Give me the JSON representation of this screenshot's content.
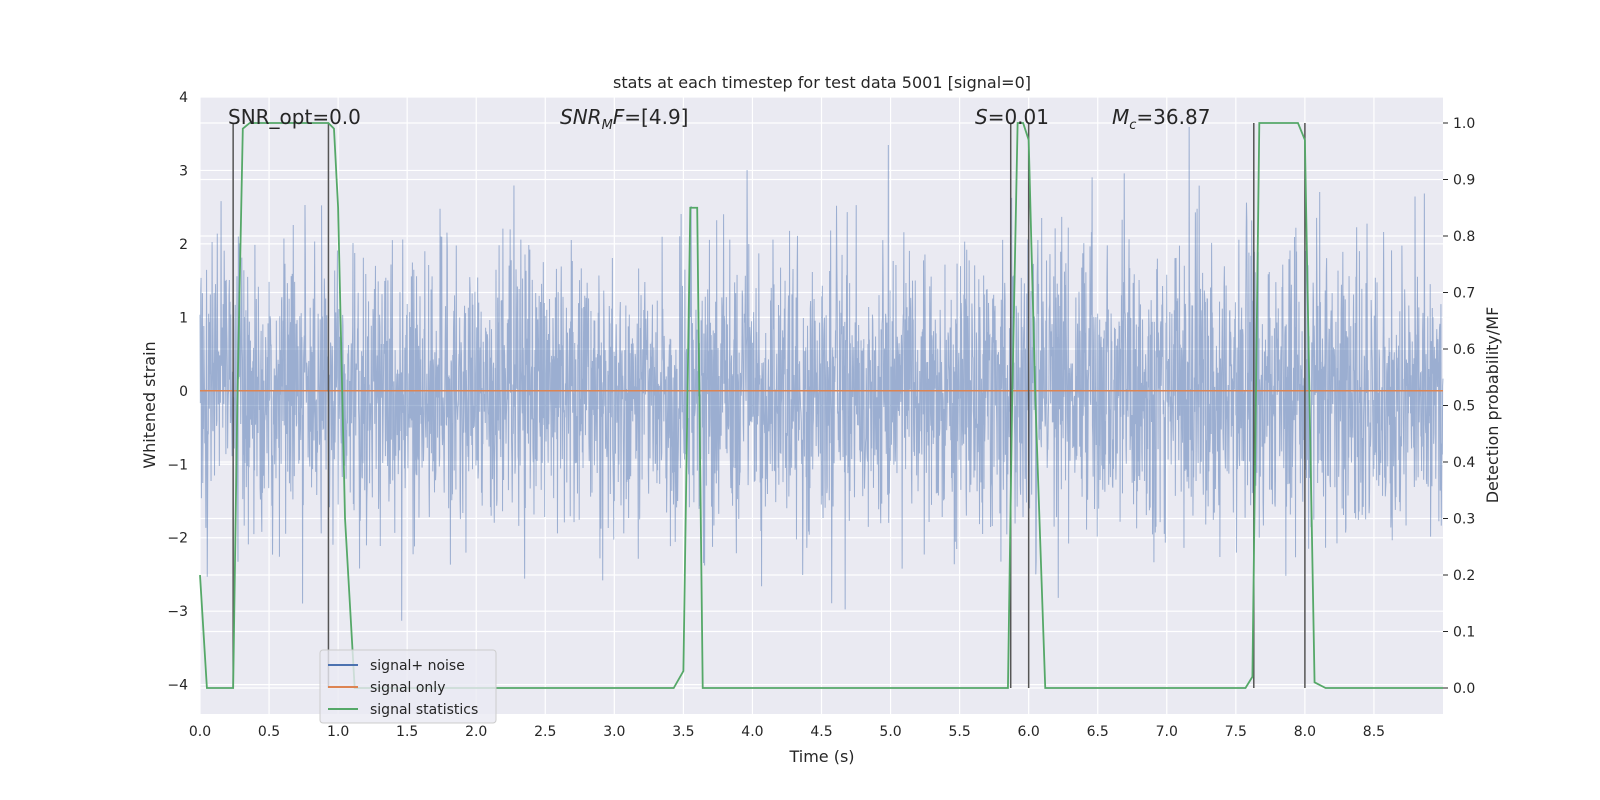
{
  "chart_data": {
    "type": "line",
    "title": "stats at each timestep for test data 5001 [signal=0]",
    "xlabel": "Time (s)",
    "ylabel_left": "Whitened strain",
    "ylabel_right": "Detection probability/MF",
    "xlim": [
      0.0,
      9.0
    ],
    "ylim_left": [
      -4.4,
      4.0
    ],
    "ylim_right": [
      -0.046,
      1.046
    ],
    "x_ticks": [
      "0.0",
      "0.5",
      "1.0",
      "1.5",
      "2.0",
      "2.5",
      "3.0",
      "3.5",
      "4.0",
      "4.5",
      "5.0",
      "5.5",
      "6.0",
      "6.5",
      "7.0",
      "7.5",
      "8.0",
      "8.5"
    ],
    "y_ticks_left": [
      "4",
      "3",
      "2",
      "1",
      "0",
      "−1",
      "−2",
      "−3",
      "−4"
    ],
    "y_ticks_right": [
      "1.0",
      "0.9",
      "0.8",
      "0.7",
      "0.6",
      "0.5",
      "0.4",
      "0.3",
      "0.2",
      "0.1",
      "0.0"
    ],
    "grid": true,
    "legend_position": "lower-left",
    "annotations": {
      "snr_opt": "SNR_opt=0.0",
      "snr_mf_base": "SNR",
      "snr_mf_sub": "M",
      "snr_mf_rest": "F=[4.9]",
      "s_italic": "S",
      "s_rest": "=0.01",
      "mc_base": "M",
      "mc_sub": "c",
      "mc_rest": "=36.87"
    },
    "series": [
      {
        "name": "signal+ noise",
        "color": "#4c72b0",
        "note_visual": "dense whitened noise, amplitude roughly within ±2.5 with spikes to ±3.9",
        "envelope": {
          "typical_amplitude": 1.4,
          "max_amplitude": 3.9
        }
      },
      {
        "name": "signal only",
        "color": "#dd8452",
        "x": [
          0.0,
          9.0
        ],
        "y": [
          0.0,
          0.0
        ]
      },
      {
        "name": "signal statistics",
        "color": "#55a868",
        "axis": "right",
        "x": [
          0.0,
          0.05,
          0.24,
          0.27,
          0.31,
          0.36,
          0.45,
          0.93,
          0.97,
          1.0,
          1.05,
          1.12,
          1.2,
          3.43,
          3.5,
          3.55,
          3.6,
          3.64,
          3.7,
          5.85,
          5.88,
          5.92,
          5.96,
          6.0,
          6.05,
          6.12,
          6.2,
          7.57,
          7.62,
          7.67,
          7.7,
          7.95,
          8.0,
          8.07,
          8.15,
          9.0
        ],
        "y": [
          0.2,
          0.0,
          0.0,
          0.5,
          0.99,
          1.0,
          1.0,
          1.0,
          0.99,
          0.85,
          0.3,
          0.0,
          0.0,
          0.0,
          0.03,
          0.85,
          0.85,
          0.0,
          0.0,
          0.0,
          0.5,
          1.0,
          1.0,
          0.97,
          0.5,
          0.0,
          0.0,
          0.0,
          0.02,
          1.0,
          1.0,
          1.0,
          0.97,
          0.01,
          0.0,
          0.0
        ]
      }
    ],
    "vertical_lines": {
      "color": "#555555",
      "x": [
        0.24,
        0.93,
        5.87,
        6.0,
        7.63,
        8.0
      ]
    }
  },
  "legend": [
    {
      "label": "signal+ noise",
      "color": "#4c72b0"
    },
    {
      "label": "signal only",
      "color": "#dd8452"
    },
    {
      "label": "signal statistics",
      "color": "#55a868"
    }
  ]
}
